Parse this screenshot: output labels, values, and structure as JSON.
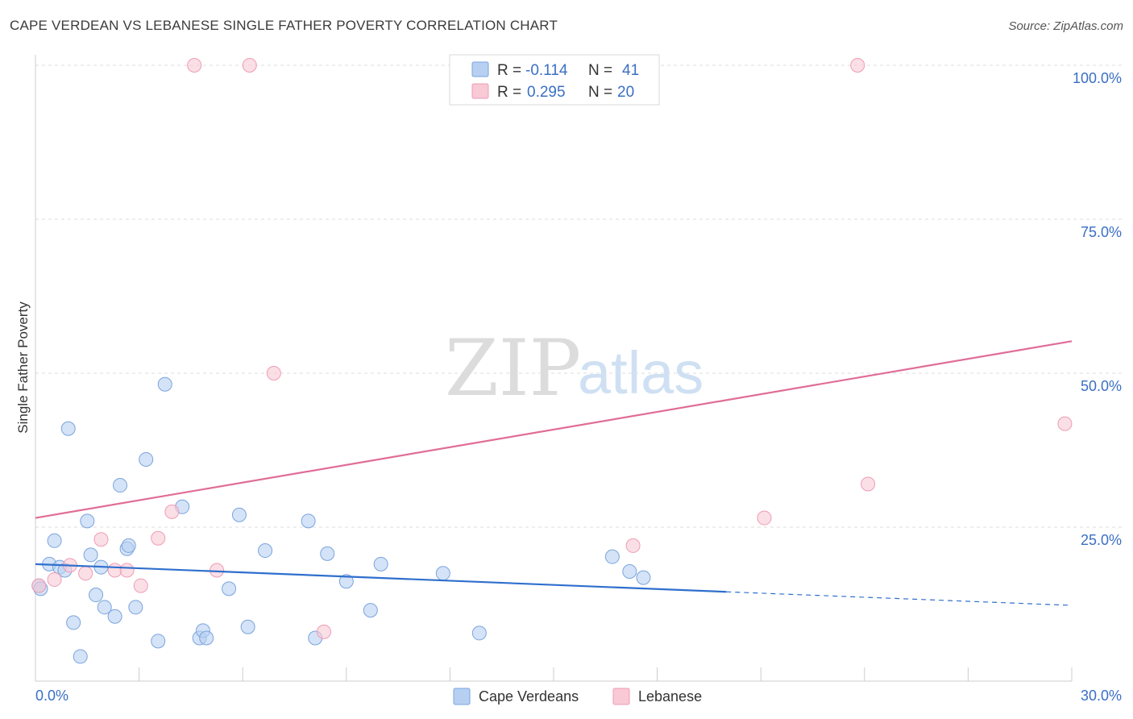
{
  "title": "CAPE VERDEAN VS LEBANESE SINGLE FATHER POVERTY CORRELATION CHART",
  "source": "Source: ZipAtlas.com",
  "watermark": {
    "zip": "ZIP",
    "atlas": "atlas"
  },
  "colors": {
    "blue_fill": "#b7d0f2",
    "blue_stroke": "#7aa4dd",
    "blue_line": "#2f6fcd",
    "pink_fill": "#f9c9d6",
    "pink_stroke": "#ee9cb4",
    "pink_line": "#e06d97",
    "label_blue": "#3a6fc4",
    "grid": "#dddddd"
  },
  "legend": {
    "r_label": "R =",
    "n_label": "N =",
    "rows": [
      {
        "r": "-0.114",
        "n": "41"
      },
      {
        "r": "0.295",
        "n": "20"
      }
    ]
  },
  "chart_data": {
    "type": "scatter",
    "title": "CAPE VERDEAN VS LEBANESE SINGLE FATHER POVERTY CORRELATION CHART",
    "xlabel": "",
    "ylabel": "Single Father Poverty",
    "xlim": [
      0,
      30
    ],
    "ylim": [
      0,
      102
    ],
    "x_tick_labels": [
      "0.0%",
      "30.0%"
    ],
    "y_ticks": [
      25,
      50,
      75,
      100
    ],
    "y_tick_labels": [
      "25.0%",
      "50.0%",
      "75.0%",
      "100.0%"
    ],
    "grid": true,
    "series": [
      {
        "name": "Cape Verdeans",
        "r": -0.114,
        "n": 41,
        "trend": {
          "x0": 0,
          "y0": 19.0,
          "x1": 20.0,
          "y1": 14.5,
          "dash_to_x": 30,
          "dash_to_y": 12.3
        },
        "points": [
          [
            0.1,
            15.5
          ],
          [
            0.15,
            15.0
          ],
          [
            0.4,
            19.0
          ],
          [
            0.55,
            22.8
          ],
          [
            0.7,
            18.5
          ],
          [
            0.85,
            18.0
          ],
          [
            0.95,
            41.0
          ],
          [
            1.1,
            9.5
          ],
          [
            1.3,
            4.0
          ],
          [
            1.5,
            26.0
          ],
          [
            1.6,
            20.5
          ],
          [
            1.75,
            14.0
          ],
          [
            1.9,
            18.5
          ],
          [
            2.0,
            12.0
          ],
          [
            2.3,
            10.5
          ],
          [
            2.45,
            31.8
          ],
          [
            2.65,
            21.5
          ],
          [
            2.7,
            22.0
          ],
          [
            2.9,
            12.0
          ],
          [
            3.2,
            36.0
          ],
          [
            3.55,
            6.5
          ],
          [
            3.75,
            48.2
          ],
          [
            4.25,
            28.3
          ],
          [
            4.75,
            7.0
          ],
          [
            4.85,
            8.2
          ],
          [
            4.95,
            7.0
          ],
          [
            5.6,
            15.0
          ],
          [
            5.9,
            27.0
          ],
          [
            6.15,
            8.8
          ],
          [
            6.65,
            21.2
          ],
          [
            7.9,
            26.0
          ],
          [
            8.1,
            7.0
          ],
          [
            8.45,
            20.7
          ],
          [
            9.0,
            16.2
          ],
          [
            9.7,
            11.5
          ],
          [
            10.0,
            19.0
          ],
          [
            11.8,
            17.5
          ],
          [
            12.85,
            7.8
          ],
          [
            16.7,
            20.2
          ],
          [
            17.2,
            17.8
          ],
          [
            17.6,
            16.8
          ]
        ]
      },
      {
        "name": "Lebanese",
        "r": 0.295,
        "n": 20,
        "trend": {
          "x0": 0,
          "y0": 26.5,
          "x1": 30,
          "y1": 55.2
        },
        "points": [
          [
            0.1,
            15.5
          ],
          [
            0.55,
            16.5
          ],
          [
            1.0,
            18.8
          ],
          [
            1.45,
            17.5
          ],
          [
            1.9,
            23.0
          ],
          [
            2.3,
            18.0
          ],
          [
            2.65,
            18.0
          ],
          [
            3.05,
            15.5
          ],
          [
            3.55,
            23.2
          ],
          [
            3.95,
            27.5
          ],
          [
            4.6,
            100.0
          ],
          [
            5.25,
            18.0
          ],
          [
            6.2,
            100.0
          ],
          [
            6.9,
            50.0
          ],
          [
            8.35,
            8.0
          ],
          [
            17.3,
            22.0
          ],
          [
            21.1,
            26.5
          ],
          [
            23.8,
            100.0
          ],
          [
            24.1,
            32.0
          ],
          [
            29.8,
            41.8
          ]
        ]
      }
    ]
  }
}
